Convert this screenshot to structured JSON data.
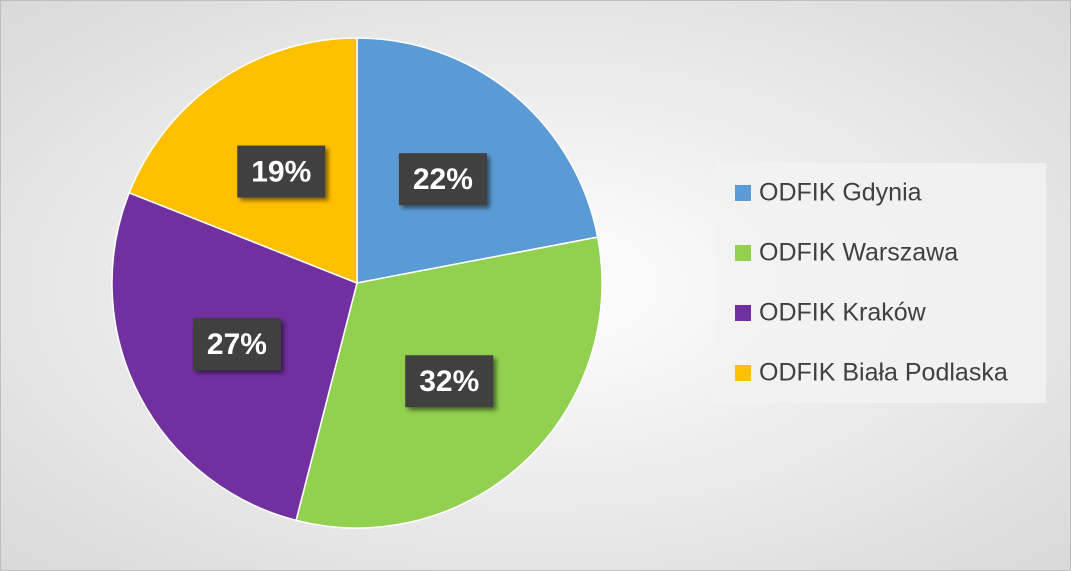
{
  "chart_data": {
    "type": "pie",
    "categories": [
      "ODFIK Gdynia",
      "ODFIK Warszawa",
      "ODFIK Kraków",
      "ODFIK Biała Podlaska"
    ],
    "values": [
      22,
      32,
      27,
      19
    ],
    "value_labels": [
      "22%",
      "32%",
      "27%",
      "19%"
    ],
    "colors": [
      "#5b9bd5",
      "#92d050",
      "#7030a0",
      "#ffc000"
    ],
    "legend": "right"
  }
}
